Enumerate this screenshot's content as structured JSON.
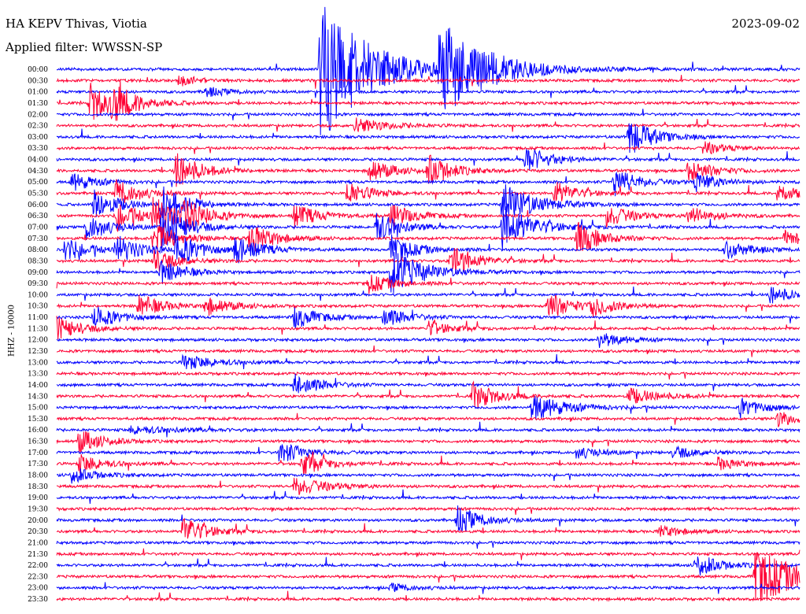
{
  "header": {
    "station": "HA KEPV Thivas, Viotia",
    "date": "2023-09-02",
    "filter": "Applied filter: WWSSN-SP",
    "channel_label": "HHZ - 10000"
  },
  "chart_data": {
    "type": "line",
    "title": "HA KEPV Thivas, Viotia",
    "subtitle": "Applied filter: WWSSN-SP",
    "ylabel": "HHZ - 10000",
    "y_tick_labels": [
      "00:00",
      "00:30",
      "01:00",
      "01:30",
      "02:00",
      "02:30",
      "03:00",
      "03:30",
      "04:00",
      "04:30",
      "05:00",
      "05:30",
      "06:00",
      "06:30",
      "07:00",
      "07:30",
      "08:00",
      "08:30",
      "09:00",
      "09:30",
      "10:00",
      "10:30",
      "11:00",
      "11:30",
      "12:00",
      "12:30",
      "13:00",
      "13:30",
      "14:00",
      "14:30",
      "15:00",
      "15:30",
      "16:00",
      "16:30",
      "17:00",
      "17:30",
      "18:00",
      "18:30",
      "19:00",
      "19:30",
      "20:00",
      "20:30",
      "21:00",
      "21:30",
      "22:00",
      "22:30",
      "23:00",
      "23:30"
    ],
    "trace_colors": [
      "#0000ff",
      "#ff0033"
    ],
    "x_range_minutes": [
      0,
      30
    ],
    "events": [
      {
        "line": 0,
        "t": 0.355,
        "amp": 95,
        "dur": 0.06
      },
      {
        "line": 0,
        "t": 0.515,
        "amp": 60,
        "dur": 0.06
      },
      {
        "line": 1,
        "t": 0.165,
        "amp": 8,
        "dur": 0.02
      },
      {
        "line": 2,
        "t": 0.2,
        "amp": 6,
        "dur": 0.03
      },
      {
        "line": 3,
        "t": 0.045,
        "amp": 25,
        "dur": 0.03
      },
      {
        "line": 3,
        "t": 0.075,
        "amp": 20,
        "dur": 0.03
      },
      {
        "line": 5,
        "t": 0.4,
        "amp": 10,
        "dur": 0.04
      },
      {
        "line": 6,
        "t": 0.77,
        "amp": 25,
        "dur": 0.03
      },
      {
        "line": 7,
        "t": 0.87,
        "amp": 8,
        "dur": 0.03
      },
      {
        "line": 8,
        "t": 0.63,
        "amp": 18,
        "dur": 0.03
      },
      {
        "line": 9,
        "t": 0.16,
        "amp": 25,
        "dur": 0.03
      },
      {
        "line": 9,
        "t": 0.42,
        "amp": 15,
        "dur": 0.03
      },
      {
        "line": 9,
        "t": 0.5,
        "amp": 20,
        "dur": 0.03
      },
      {
        "line": 9,
        "t": 0.85,
        "amp": 15,
        "dur": 0.03
      },
      {
        "line": 10,
        "t": 0.02,
        "amp": 12,
        "dur": 0.03
      },
      {
        "line": 10,
        "t": 0.75,
        "amp": 18,
        "dur": 0.03
      },
      {
        "line": 10,
        "t": 0.86,
        "amp": 12,
        "dur": 0.03
      },
      {
        "line": 11,
        "t": 0.08,
        "amp": 18,
        "dur": 0.03
      },
      {
        "line": 11,
        "t": 0.39,
        "amp": 15,
        "dur": 0.03
      },
      {
        "line": 11,
        "t": 0.67,
        "amp": 15,
        "dur": 0.03
      },
      {
        "line": 11,
        "t": 0.97,
        "amp": 12,
        "dur": 0.03
      },
      {
        "line": 12,
        "t": 0.05,
        "amp": 20,
        "dur": 0.03
      },
      {
        "line": 12,
        "t": 0.14,
        "amp": 25,
        "dur": 0.03
      },
      {
        "line": 12,
        "t": 0.6,
        "amp": 28,
        "dur": 0.04
      },
      {
        "line": 13,
        "t": 0.08,
        "amp": 18,
        "dur": 0.03
      },
      {
        "line": 13,
        "t": 0.13,
        "amp": 22,
        "dur": 0.03
      },
      {
        "line": 13,
        "t": 0.17,
        "amp": 18,
        "dur": 0.03
      },
      {
        "line": 13,
        "t": 0.32,
        "amp": 15,
        "dur": 0.03
      },
      {
        "line": 13,
        "t": 0.45,
        "amp": 15,
        "dur": 0.03
      },
      {
        "line": 13,
        "t": 0.74,
        "amp": 15,
        "dur": 0.03
      },
      {
        "line": 13,
        "t": 0.85,
        "amp": 12,
        "dur": 0.03
      },
      {
        "line": 14,
        "t": 0.04,
        "amp": 18,
        "dur": 0.03
      },
      {
        "line": 14,
        "t": 0.14,
        "amp": 30,
        "dur": 0.03
      },
      {
        "line": 14,
        "t": 0.43,
        "amp": 20,
        "dur": 0.03
      },
      {
        "line": 14,
        "t": 0.6,
        "amp": 28,
        "dur": 0.04
      },
      {
        "line": 15,
        "t": 0.13,
        "amp": 22,
        "dur": 0.03
      },
      {
        "line": 15,
        "t": 0.26,
        "amp": 20,
        "dur": 0.03
      },
      {
        "line": 15,
        "t": 0.7,
        "amp": 22,
        "dur": 0.03
      },
      {
        "line": 15,
        "t": 0.98,
        "amp": 10,
        "dur": 0.03
      },
      {
        "line": 16,
        "t": 0.01,
        "amp": 15,
        "dur": 0.03
      },
      {
        "line": 16,
        "t": 0.08,
        "amp": 18,
        "dur": 0.03
      },
      {
        "line": 16,
        "t": 0.16,
        "amp": 22,
        "dur": 0.03
      },
      {
        "line": 16,
        "t": 0.24,
        "amp": 18,
        "dur": 0.03
      },
      {
        "line": 16,
        "t": 0.45,
        "amp": 18,
        "dur": 0.03
      },
      {
        "line": 16,
        "t": 0.9,
        "amp": 12,
        "dur": 0.03
      },
      {
        "line": 17,
        "t": 0.13,
        "amp": 15,
        "dur": 0.03
      },
      {
        "line": 17,
        "t": 0.53,
        "amp": 22,
        "dur": 0.03
      },
      {
        "line": 18,
        "t": 0.14,
        "amp": 15,
        "dur": 0.03
      },
      {
        "line": 18,
        "t": 0.45,
        "amp": 30,
        "dur": 0.04
      },
      {
        "line": 19,
        "t": 0.42,
        "amp": 12,
        "dur": 0.03
      },
      {
        "line": 20,
        "t": 0.96,
        "amp": 12,
        "dur": 0.03
      },
      {
        "line": 21,
        "t": 0.11,
        "amp": 15,
        "dur": 0.03
      },
      {
        "line": 21,
        "t": 0.2,
        "amp": 12,
        "dur": 0.03
      },
      {
        "line": 21,
        "t": 0.66,
        "amp": 18,
        "dur": 0.03
      },
      {
        "line": 21,
        "t": 0.72,
        "amp": 12,
        "dur": 0.03
      },
      {
        "line": 22,
        "t": 0.05,
        "amp": 15,
        "dur": 0.03
      },
      {
        "line": 22,
        "t": 0.32,
        "amp": 15,
        "dur": 0.03
      },
      {
        "line": 22,
        "t": 0.44,
        "amp": 12,
        "dur": 0.03
      },
      {
        "line": 23,
        "t": 0.0,
        "amp": 15,
        "dur": 0.03
      },
      {
        "line": 23,
        "t": 0.5,
        "amp": 10,
        "dur": 0.03
      },
      {
        "line": 24,
        "t": 0.73,
        "amp": 10,
        "dur": 0.03
      },
      {
        "line": 26,
        "t": 0.17,
        "amp": 10,
        "dur": 0.04
      },
      {
        "line": 28,
        "t": 0.32,
        "amp": 15,
        "dur": 0.03
      },
      {
        "line": 29,
        "t": 0.56,
        "amp": 18,
        "dur": 0.03
      },
      {
        "line": 29,
        "t": 0.77,
        "amp": 10,
        "dur": 0.04
      },
      {
        "line": 30,
        "t": 0.64,
        "amp": 18,
        "dur": 0.04
      },
      {
        "line": 30,
        "t": 0.92,
        "amp": 12,
        "dur": 0.03
      },
      {
        "line": 31,
        "t": 0.97,
        "amp": 10,
        "dur": 0.03
      },
      {
        "line": 32,
        "t": 0.1,
        "amp": 5,
        "dur": 0.06
      },
      {
        "line": 33,
        "t": 0.03,
        "amp": 15,
        "dur": 0.03
      },
      {
        "line": 34,
        "t": 0.3,
        "amp": 15,
        "dur": 0.03
      },
      {
        "line": 34,
        "t": 0.7,
        "amp": 8,
        "dur": 0.03
      },
      {
        "line": 34,
        "t": 0.83,
        "amp": 8,
        "dur": 0.03
      },
      {
        "line": 35,
        "t": 0.03,
        "amp": 12,
        "dur": 0.03
      },
      {
        "line": 35,
        "t": 0.33,
        "amp": 15,
        "dur": 0.03
      },
      {
        "line": 35,
        "t": 0.89,
        "amp": 8,
        "dur": 0.03
      },
      {
        "line": 36,
        "t": 0.02,
        "amp": 10,
        "dur": 0.03
      },
      {
        "line": 37,
        "t": 0.32,
        "amp": 12,
        "dur": 0.04
      },
      {
        "line": 40,
        "t": 0.54,
        "amp": 18,
        "dur": 0.03
      },
      {
        "line": 41,
        "t": 0.17,
        "amp": 20,
        "dur": 0.03
      },
      {
        "line": 41,
        "t": 0.81,
        "amp": 8,
        "dur": 0.03
      },
      {
        "line": 44,
        "t": 0.86,
        "amp": 15,
        "dur": 0.03
      },
      {
        "line": 45,
        "t": 0.94,
        "amp": 40,
        "dur": 0.05
      },
      {
        "line": 46,
        "t": 0.45,
        "amp": 5,
        "dur": 0.03
      }
    ]
  }
}
